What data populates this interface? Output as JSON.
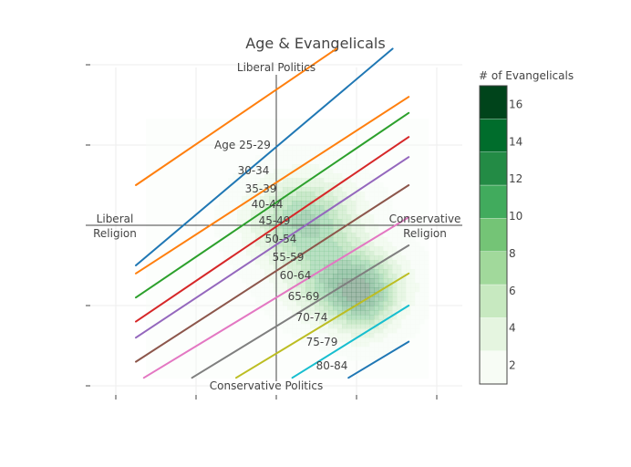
{
  "chart_data": {
    "type": "contour",
    "title": "Age & Evangelicals",
    "quadrant_labels": {
      "top": "Liberal Politics",
      "bottom": "Conservative Politics",
      "left_line1": "Liberal",
      "left_line2": "Religion",
      "right_line1": "Conservative",
      "right_line2": "Religion"
    },
    "xlim": [
      -2.2,
      2.3
    ],
    "ylim": [
      -2.2,
      2.3
    ],
    "grid": true,
    "colorbar": {
      "title": "# of Evangelicals",
      "ticks": [
        2,
        4,
        6,
        8,
        10,
        12,
        14,
        16
      ],
      "range": [
        1,
        17
      ],
      "colors": [
        "#f7fcf5",
        "#e5f5e0",
        "#c7e9c0",
        "#a1d99b",
        "#74c476",
        "#41ab5d",
        "#238b45",
        "#006d2c",
        "#00441b"
      ]
    },
    "density_centers": [
      {
        "x": 0.35,
        "y": 0.05,
        "sx": 0.45,
        "sy": 0.38,
        "w": 13
      },
      {
        "x": 0.9,
        "y": -0.75,
        "sx": 0.45,
        "sy": 0.32,
        "w": 14
      },
      {
        "x": 1.1,
        "y": -1.0,
        "sx": 0.25,
        "sy": 0.3,
        "w": 6
      }
    ],
    "series": [
      {
        "name": "Age 25-29",
        "color": "#ff7f0e",
        "x": [
          -1.75,
          0.75
        ],
        "y": [
          0.5,
          2.2
        ]
      },
      {
        "name": "30-34",
        "color": "#1f77b4",
        "x": [
          -1.75,
          1.45
        ],
        "y": [
          -0.5,
          2.2
        ]
      },
      {
        "name": "35-39",
        "color": "#ff7f0e",
        "x": [
          -1.75,
          1.65
        ],
        "y": [
          -0.6,
          1.6
        ]
      },
      {
        "name": "40-44",
        "color": "#2ca02c",
        "x": [
          -1.75,
          1.65
        ],
        "y": [
          -0.9,
          1.4
        ]
      },
      {
        "name": "45-49",
        "color": "#d62728",
        "x": [
          -1.75,
          1.65
        ],
        "y": [
          -1.2,
          1.1
        ]
      },
      {
        "name": "50-54",
        "color": "#9467bd",
        "x": [
          -1.75,
          1.65
        ],
        "y": [
          -1.4,
          0.85
        ]
      },
      {
        "name": "55-59",
        "color": "#8c564b",
        "x": [
          -1.75,
          1.65
        ],
        "y": [
          -1.7,
          0.5
        ]
      },
      {
        "name": "60-64",
        "color": "#e377c2",
        "x": [
          -1.65,
          1.65
        ],
        "y": [
          -1.9,
          0.1
        ]
      },
      {
        "name": "65-69",
        "color": "#7f7f7f",
        "x": [
          -1.05,
          1.65
        ],
        "y": [
          -1.9,
          -0.25
        ]
      },
      {
        "name": "70-74",
        "color": "#bcbd22",
        "x": [
          -0.5,
          1.65
        ],
        "y": [
          -1.9,
          -0.6
        ]
      },
      {
        "name": "75-79",
        "color": "#17becf",
        "x": [
          0.2,
          1.65
        ],
        "y": [
          -1.9,
          -1.0
        ]
      },
      {
        "name": "80-84",
        "color": "#1f77b4",
        "x": [
          0.9,
          1.65
        ],
        "y": [
          -1.9,
          -1.45
        ]
      }
    ]
  }
}
